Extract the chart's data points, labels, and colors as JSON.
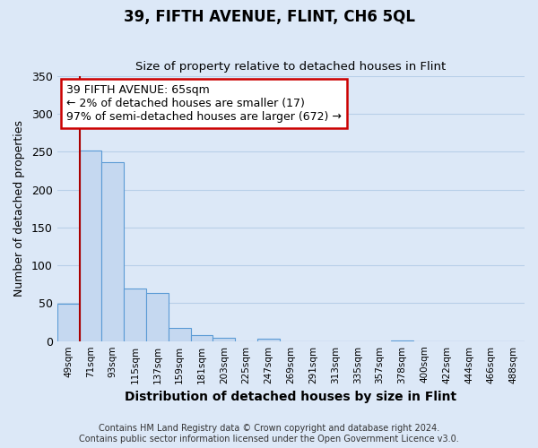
{
  "title": "39, FIFTH AVENUE, FLINT, CH6 5QL",
  "subtitle": "Size of property relative to detached houses in Flint",
  "xlabel": "Distribution of detached houses by size in Flint",
  "ylabel": "Number of detached properties",
  "bin_labels": [
    "49sqm",
    "71sqm",
    "93sqm",
    "115sqm",
    "137sqm",
    "159sqm",
    "181sqm",
    "203sqm",
    "225sqm",
    "247sqm",
    "269sqm",
    "291sqm",
    "313sqm",
    "335sqm",
    "357sqm",
    "378sqm",
    "400sqm",
    "422sqm",
    "444sqm",
    "466sqm",
    "488sqm"
  ],
  "bar_values": [
    49,
    252,
    236,
    70,
    63,
    17,
    8,
    4,
    0,
    3,
    0,
    0,
    0,
    0,
    0,
    1,
    0,
    0,
    0,
    0,
    0
  ],
  "bar_color": "#c5d8f0",
  "bar_edge_color": "#5b9bd5",
  "background_color": "#dce8f7",
  "plot_bg_color": "#dce8f7",
  "grid_color": "#b8cfe8",
  "vline_color": "#aa0000",
  "annotation_title": "39 FIFTH AVENUE: 65sqm",
  "annotation_line1": "← 2% of detached houses are smaller (17)",
  "annotation_line2": "97% of semi-detached houses are larger (672) →",
  "annotation_box_color": "#ffffff",
  "annotation_border_color": "#cc0000",
  "ylim": [
    0,
    350
  ],
  "yticks": [
    0,
    50,
    100,
    150,
    200,
    250,
    300,
    350
  ],
  "footer1": "Contains HM Land Registry data © Crown copyright and database right 2024.",
  "footer2": "Contains public sector information licensed under the Open Government Licence v3.0."
}
